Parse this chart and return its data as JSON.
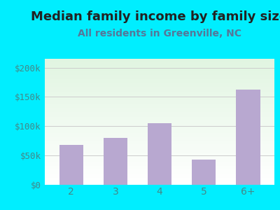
{
  "title": "Median family income by family size",
  "subtitle": "All residents in Greenville, NC",
  "categories": [
    "2",
    "3",
    "4",
    "5",
    "6+"
  ],
  "values": [
    68000,
    80000,
    105000,
    43000,
    163000
  ],
  "bar_color": "#b8a8d0",
  "title_fontsize": 13,
  "subtitle_fontsize": 10,
  "ylabel_ticks": [
    0,
    50000,
    100000,
    150000,
    200000
  ],
  "ylabel_labels": [
    "$0",
    "$50k",
    "$100k",
    "$150k",
    "$200k"
  ],
  "ylim": [
    0,
    215000
  ],
  "background_outer": "#00eeff",
  "grid_color": "#cccccc",
  "title_color": "#222222",
  "subtitle_color": "#557799",
  "tick_color": "#448888"
}
